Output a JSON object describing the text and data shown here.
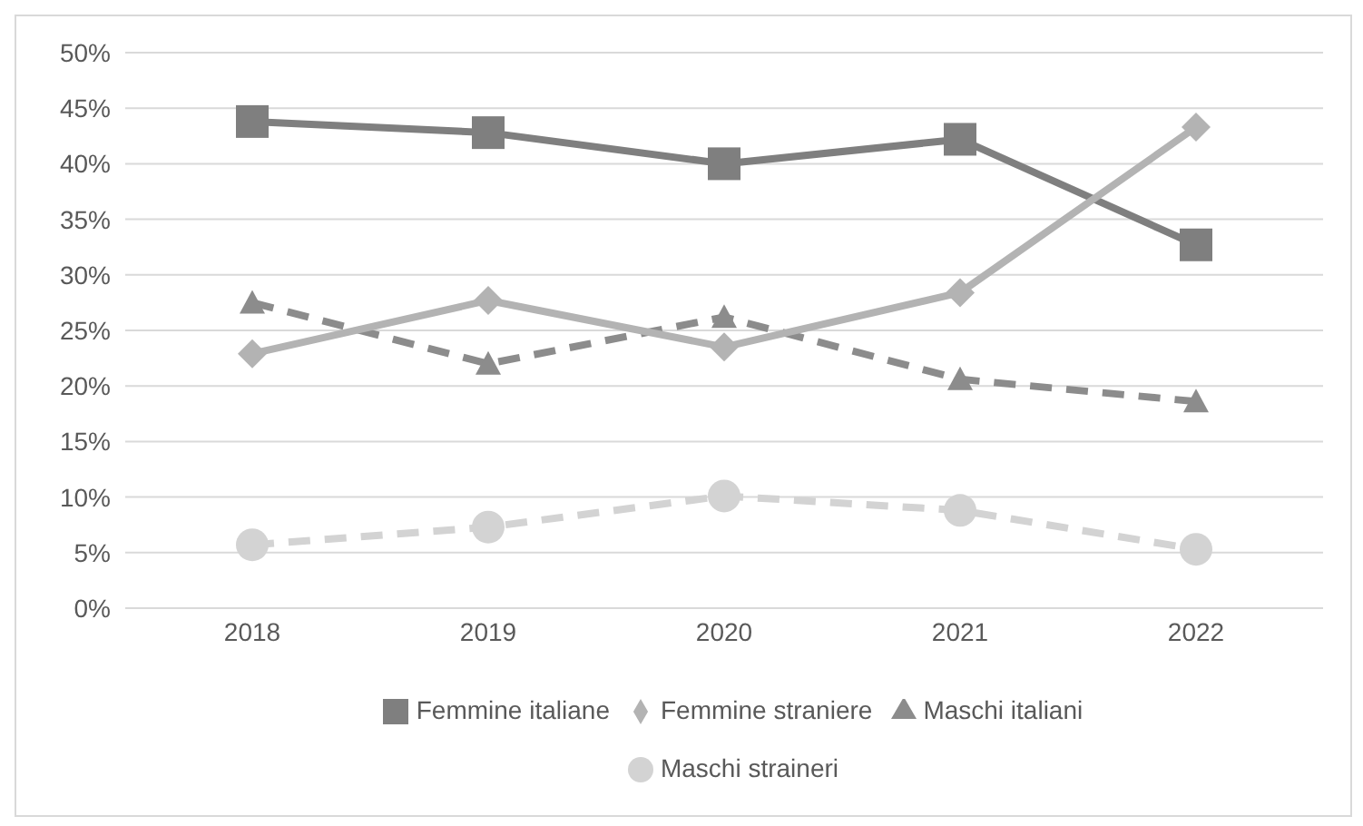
{
  "chart_data": {
    "type": "line",
    "categories": [
      "2018",
      "2019",
      "2020",
      "2021",
      "2022"
    ],
    "series": [
      {
        "name": "Femmine italiane",
        "color": "#7f7f7f",
        "marker": "square",
        "line_style": "solid",
        "values": [
          43.8,
          42.8,
          40.0,
          42.2,
          32.7
        ]
      },
      {
        "name": "Maschi italiani",
        "color": "#8c8c8c",
        "marker": "triangle",
        "line_style": "dashed",
        "values": [
          27.5,
          22.0,
          26.2,
          20.6,
          18.6
        ]
      },
      {
        "name": "Femmine straniere",
        "color": "#b3b3b3",
        "marker": "diamond",
        "line_style": "solid",
        "values": [
          22.9,
          27.7,
          23.5,
          28.4,
          43.3
        ]
      },
      {
        "name": "Maschi straineri",
        "color": "#d3d3d3",
        "marker": "circle",
        "line_style": "dashed",
        "values": [
          5.7,
          7.3,
          10.1,
          8.8,
          5.3
        ]
      }
    ],
    "ylim": [
      0,
      50
    ],
    "yticks": [
      {
        "value": 0,
        "label": "0%"
      },
      {
        "value": 5,
        "label": "5%"
      },
      {
        "value": 10,
        "label": "10%"
      },
      {
        "value": 15,
        "label": "15%"
      },
      {
        "value": 20,
        "label": "20%"
      },
      {
        "value": 25,
        "label": "25%"
      },
      {
        "value": 30,
        "label": "30%"
      },
      {
        "value": 35,
        "label": "35%"
      },
      {
        "value": 40,
        "label": "40%"
      },
      {
        "value": 45,
        "label": "45%"
      },
      {
        "value": 50,
        "label": "50%"
      }
    ],
    "grid": "y",
    "legend": "bottom"
  }
}
